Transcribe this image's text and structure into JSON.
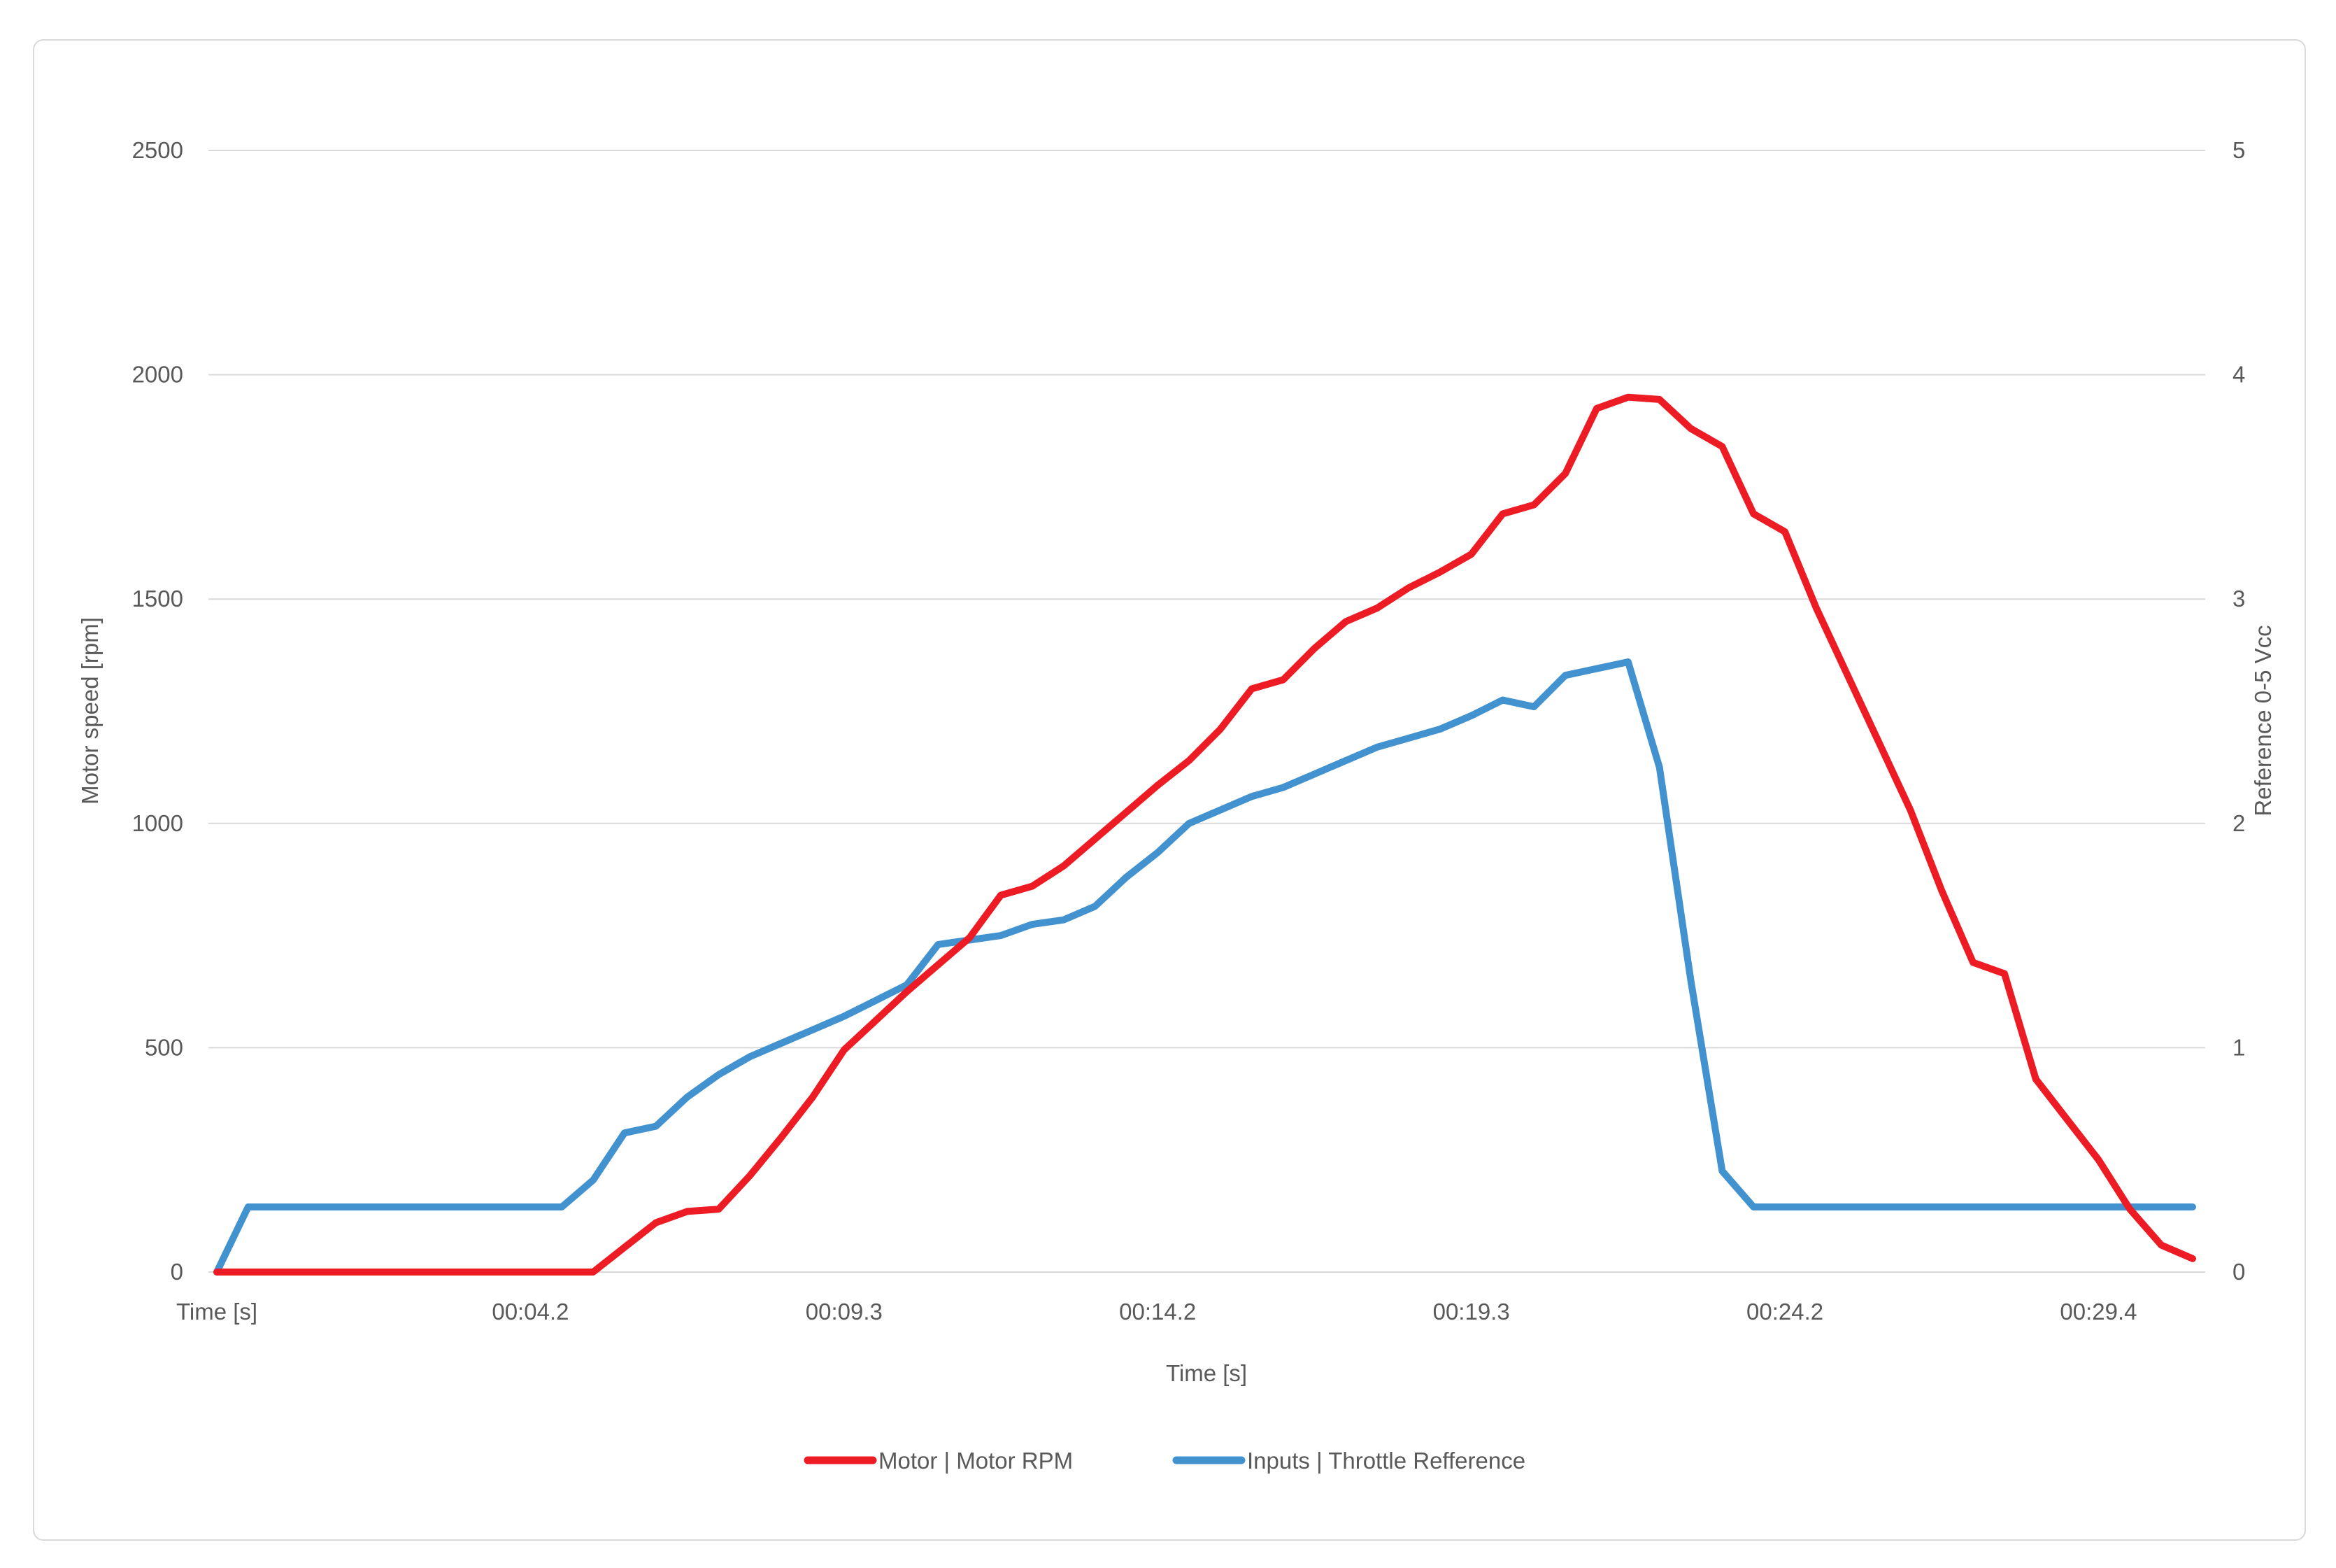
{
  "chart_data": {
    "type": "line",
    "title": "",
    "grid": true,
    "legend_position": "bottom",
    "x_axis": {
      "label": "Time [s]",
      "tick_labels": [
        "Time [s]",
        "00:04.2",
        "00:09.3",
        "00:14.2",
        "00:19.3",
        "00:24.2",
        "00:29.4"
      ],
      "tick_every": 10,
      "point_count": 64
    },
    "y_axis_left": {
      "label": "Motor speed [rpm]",
      "min": 0,
      "max": 2500,
      "ticks": [
        0,
        500,
        1000,
        1500,
        2000,
        2500
      ]
    },
    "y_axis_right": {
      "label": "Reference 0-5 Vcc",
      "min": 0,
      "max": 5,
      "ticks": [
        0,
        1,
        2,
        3,
        4,
        5
      ]
    },
    "series": [
      {
        "name": "Motor | Motor RPM",
        "axis": "left",
        "color": "#ed1c24",
        "values": [
          0,
          0,
          0,
          0,
          0,
          0,
          0,
          0,
          0,
          0,
          0,
          0,
          0,
          55,
          110,
          135,
          140,
          215,
          300,
          390,
          495,
          560,
          625,
          685,
          745,
          840,
          860,
          905,
          965,
          1025,
          1085,
          1140,
          1210,
          1300,
          1320,
          1390,
          1450,
          1480,
          1525,
          1560,
          1600,
          1690,
          1710,
          1780,
          1925,
          1950,
          1945,
          1880,
          1840,
          1690,
          1650,
          1480,
          1330,
          1180,
          1030,
          850,
          690,
          665,
          430,
          340,
          250,
          140,
          60,
          30
        ]
      },
      {
        "name": "Inputs | Throttle Refference",
        "axis": "right",
        "color": "#4292cf",
        "values": [
          0.0,
          0.29,
          0.29,
          0.29,
          0.29,
          0.29,
          0.29,
          0.29,
          0.29,
          0.29,
          0.29,
          0.29,
          0.41,
          0.62,
          0.65,
          0.78,
          0.88,
          0.96,
          1.02,
          1.08,
          1.14,
          1.21,
          1.28,
          1.46,
          1.48,
          1.5,
          1.55,
          1.57,
          1.63,
          1.76,
          1.87,
          2.0,
          2.06,
          2.12,
          2.16,
          2.22,
          2.28,
          2.34,
          2.38,
          2.42,
          2.48,
          2.55,
          2.52,
          2.66,
          2.69,
          2.72,
          2.25,
          1.3,
          0.45,
          0.29,
          0.29,
          0.29,
          0.29,
          0.29,
          0.29,
          0.29,
          0.29,
          0.29,
          0.29,
          0.29,
          0.29,
          0.29,
          0.29,
          0.29
        ]
      }
    ]
  },
  "colors": {
    "gridline": "#d9d9d9",
    "chart_border": "#d9d9d9",
    "text": "#595959",
    "background": "#ffffff"
  }
}
